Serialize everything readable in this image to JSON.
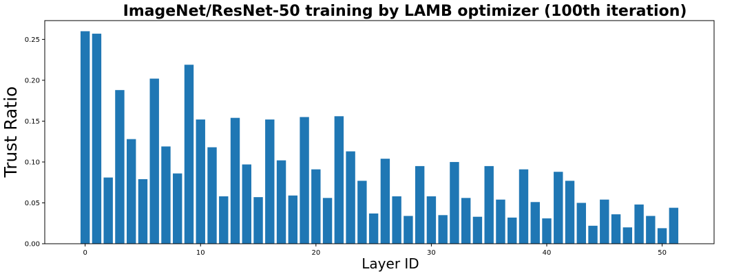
{
  "chart_data": {
    "type": "bar",
    "title": "ImageNet/ResNet-50 training by LAMB optimizer (100th iteration)",
    "xlabel": "Layer ID",
    "ylabel": "Trust Ratio",
    "xlim": [
      -3.5,
      54.5
    ],
    "ylim": [
      0,
      0.273
    ],
    "xticks": [
      0,
      10,
      20,
      30,
      40,
      50
    ],
    "yticks": [
      0.0,
      0.05,
      0.1,
      0.15,
      0.2,
      0.25
    ],
    "ytick_labels": [
      "0.00",
      "0.05",
      "0.10",
      "0.15",
      "0.20",
      "0.25"
    ],
    "bar_color": "#1f77b4",
    "grid": false,
    "categories": [
      0,
      1,
      2,
      3,
      4,
      5,
      6,
      7,
      8,
      9,
      10,
      11,
      12,
      13,
      14,
      15,
      16,
      17,
      18,
      19,
      20,
      21,
      22,
      23,
      24,
      25,
      26,
      27,
      28,
      29,
      30,
      31,
      32,
      33,
      34,
      35,
      36,
      37,
      38,
      39,
      40,
      41,
      42,
      43,
      44,
      45,
      46,
      47,
      48,
      49,
      50,
      51
    ],
    "values": [
      0.26,
      0.257,
      0.081,
      0.188,
      0.128,
      0.079,
      0.202,
      0.119,
      0.086,
      0.219,
      0.152,
      0.118,
      0.058,
      0.154,
      0.097,
      0.057,
      0.152,
      0.102,
      0.059,
      0.155,
      0.091,
      0.056,
      0.156,
      0.113,
      0.077,
      0.037,
      0.104,
      0.058,
      0.034,
      0.095,
      0.058,
      0.035,
      0.1,
      0.056,
      0.033,
      0.095,
      0.054,
      0.032,
      0.091,
      0.051,
      0.031,
      0.088,
      0.077,
      0.05,
      0.022,
      0.054,
      0.036,
      0.02,
      0.048,
      0.034,
      0.019,
      0.044
    ]
  }
}
